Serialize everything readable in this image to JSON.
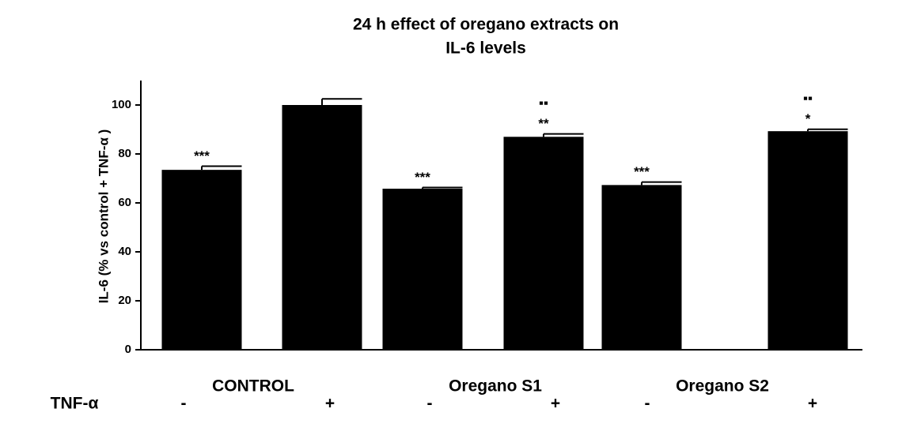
{
  "chart_data": {
    "type": "bar",
    "title": [
      "24 h effect of oregano extracts  on",
      "IL-6 levels"
    ],
    "ylabel": "IL-6 (% vs control + TNF-α )",
    "groups": [
      "CONTROL",
      "Oregano S1",
      "Oregano S2"
    ],
    "row_label": "TNF-α",
    "categories": [
      "-",
      "+",
      "-",
      "+",
      "-",
      "+"
    ],
    "values": [
      73.5,
      100,
      65.8,
      87,
      67.3,
      89.3
    ],
    "errors": [
      1.5,
      2.5,
      0.5,
      1.2,
      1.2,
      0.8
    ],
    "annotations": [
      "***",
      null,
      "***",
      "**",
      "***",
      "*"
    ],
    "annotations2": [
      null,
      null,
      null,
      "▪▪",
      null,
      "▪▪"
    ],
    "color": "#000000",
    "ylim": [
      0,
      110
    ],
    "yticks": [
      0,
      20,
      40,
      60,
      80,
      100
    ]
  }
}
